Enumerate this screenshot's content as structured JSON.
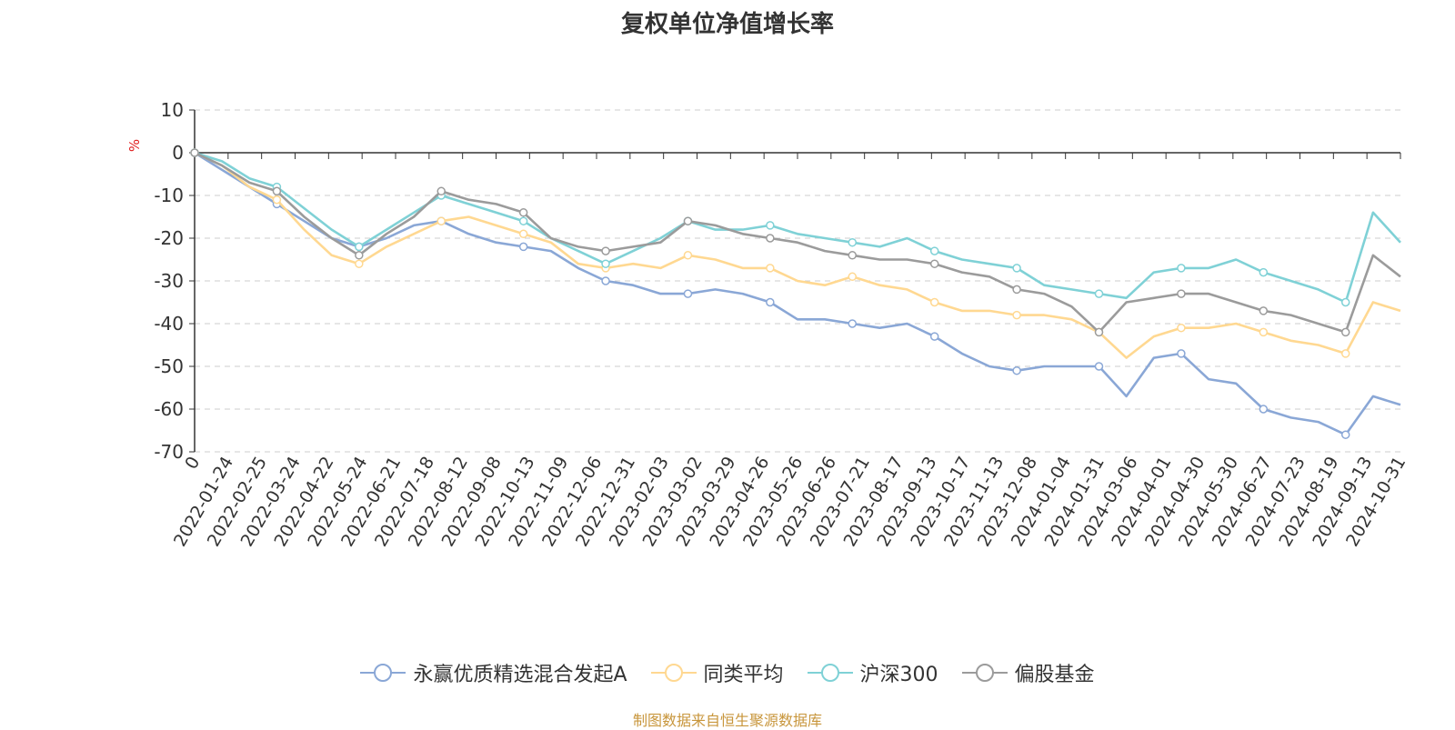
{
  "chart_data": {
    "type": "line",
    "title": "复权单位净值增长率",
    "ylabel": "%",
    "xlabel": "",
    "ylim": [
      -70,
      10
    ],
    "yticks": [
      10,
      0,
      -10,
      -20,
      -30,
      -40,
      -50,
      -60,
      -70
    ],
    "grid": "horizontal dashed",
    "legend_position": "bottom-center",
    "x_tick_labels": [
      "0",
      "2022-01-24",
      "2022-02-25",
      "2022-03-24",
      "2022-04-22",
      "2022-05-24",
      "2022-06-21",
      "2022-07-18",
      "2022-08-12",
      "2022-09-08",
      "2022-10-13",
      "2022-11-09",
      "2022-12-06",
      "2022-12-31",
      "2023-02-03",
      "2023-03-02",
      "2023-03-29",
      "2023-04-26",
      "2023-05-26",
      "2023-06-26",
      "2023-07-21",
      "2023-08-17",
      "2023-09-13",
      "2023-10-17",
      "2023-11-13",
      "2023-12-08",
      "2024-01-04",
      "2024-01-31",
      "2024-03-06",
      "2024-04-01",
      "2024-04-30",
      "2024-05-30",
      "2024-06-27",
      "2024-07-23",
      "2024-08-19",
      "2024-09-13",
      "2024-10-31"
    ],
    "series": [
      {
        "name": "永赢优质精选混合发起A",
        "color": "#8aa7d6",
        "values": [
          0,
          -4,
          -8,
          -12,
          -16,
          -20,
          -22,
          -20,
          -17,
          -16,
          -19,
          -21,
          -22,
          -23,
          -27,
          -30,
          -31,
          -33,
          -33,
          -32,
          -33,
          -35,
          -39,
          -39,
          -40,
          -41,
          -40,
          -43,
          -47,
          -50,
          -51,
          -50,
          -50,
          -50,
          -57,
          -48,
          -47,
          -53,
          -54,
          -60,
          -62,
          -63,
          -66,
          -57,
          -59
        ]
      },
      {
        "name": "同类平均",
        "color": "#ffd891",
        "values": [
          0,
          -3,
          -8,
          -11,
          -18,
          -24,
          -26,
          -22,
          -19,
          -16,
          -15,
          -17,
          -19,
          -21,
          -26,
          -27,
          -26,
          -27,
          -24,
          -25,
          -27,
          -27,
          -30,
          -31,
          -29,
          -31,
          -32,
          -35,
          -37,
          -37,
          -38,
          -38,
          -39,
          -42,
          -48,
          -43,
          -41,
          -41,
          -40,
          -42,
          -44,
          -45,
          -47,
          -35,
          -37
        ]
      },
      {
        "name": "沪深300",
        "color": "#7fd1d6",
        "values": [
          0,
          -2,
          -6,
          -8,
          -13,
          -18,
          -22,
          -18,
          -14,
          -10,
          -12,
          -14,
          -16,
          -20,
          -23,
          -26,
          -23,
          -20,
          -16,
          -18,
          -18,
          -17,
          -19,
          -20,
          -21,
          -22,
          -20,
          -23,
          -25,
          -26,
          -27,
          -31,
          -32,
          -33,
          -34,
          -28,
          -27,
          -27,
          -25,
          -28,
          -30,
          -32,
          -35,
          -14,
          -21
        ]
      },
      {
        "name": "偏股基金",
        "color": "#9b9b9b",
        "values": [
          0,
          -3,
          -7,
          -9,
          -15,
          -20,
          -24,
          -19,
          -15,
          -9,
          -11,
          -12,
          -14,
          -20,
          -22,
          -23,
          -22,
          -21,
          -16,
          -17,
          -19,
          -20,
          -21,
          -23,
          -24,
          -25,
          -25,
          -26,
          -28,
          -29,
          -32,
          -33,
          -36,
          -42,
          -35,
          -34,
          -33,
          -33,
          -35,
          -37,
          -38,
          -40,
          -42,
          -24,
          -29
        ]
      }
    ]
  },
  "source": "制图数据来自恒生聚源数据库"
}
